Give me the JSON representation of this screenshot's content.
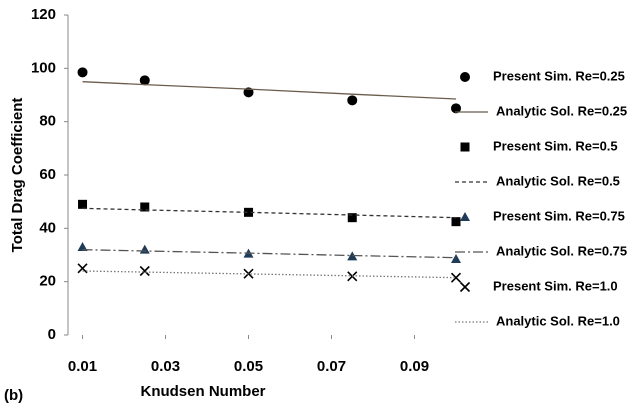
{
  "chart_data": {
    "type": "scatter-line",
    "panel_label": "(b)",
    "x_label": "Knudsen Number",
    "y_label": "Total  Drag  Coefficient",
    "xlim": [
      0.0065,
      0.1
    ],
    "xticks": [
      0.01,
      0.03,
      0.05,
      0.07,
      0.09
    ],
    "ylim": [
      0,
      120
    ],
    "yticks": [
      0,
      20,
      40,
      60,
      80,
      100,
      120
    ],
    "series": [
      {
        "name": "Present Sim. Re=0.25",
        "color": "#000000",
        "marker": "circle",
        "x": [
          0.01,
          0.025,
          0.05,
          0.075,
          0.1
        ],
        "values": [
          98.5,
          95.5,
          91,
          88,
          85
        ]
      },
      {
        "name": "Analytic Sol. Re=0.25",
        "color": "#6b5d4d",
        "dash": "none",
        "x": [
          0.01,
          0.025,
          0.05,
          0.075,
          0.1
        ],
        "values": [
          95,
          93.9,
          92.2,
          90.3,
          88.5
        ]
      },
      {
        "name": "Present Sim. Re=0.5",
        "color": "#000000",
        "marker": "square",
        "x": [
          0.01,
          0.025,
          0.05,
          0.075,
          0.1
        ],
        "values": [
          49,
          48,
          46,
          44,
          42.5
        ]
      },
      {
        "name": "Analytic Sol. Re=0.5",
        "color": "#333333",
        "dash": "4 3",
        "x": [
          0.01,
          0.025,
          0.05,
          0.075,
          0.1
        ],
        "values": [
          47.5,
          46.9,
          46,
          45,
          44
        ]
      },
      {
        "name": "Present Sim. Re=0.75",
        "color": "#1f3b57",
        "marker": "triangle",
        "x": [
          0.01,
          0.025,
          0.05,
          0.075,
          0.1
        ],
        "values": [
          33,
          32,
          30.5,
          29.5,
          28.5
        ]
      },
      {
        "name": "Analytic Sol. Re=0.75",
        "color": "#555555",
        "dash": "10 3 2 3",
        "x": [
          0.01,
          0.025,
          0.05,
          0.075,
          0.1
        ],
        "values": [
          32,
          31.5,
          30.7,
          29.8,
          29
        ]
      },
      {
        "name": "Present Sim. Re=1.0",
        "color": "#000000",
        "marker": "cross",
        "x": [
          0.01,
          0.025,
          0.05,
          0.075,
          0.1
        ],
        "values": [
          25,
          24,
          23,
          22,
          21.5
        ]
      },
      {
        "name": "Analytic Sol. Re=1.0",
        "color": "#777777",
        "dash": "1.5 2",
        "x": [
          0.01,
          0.025,
          0.05,
          0.075,
          0.1
        ],
        "values": [
          24,
          23.6,
          22.9,
          22.2,
          21.5
        ]
      }
    ]
  }
}
